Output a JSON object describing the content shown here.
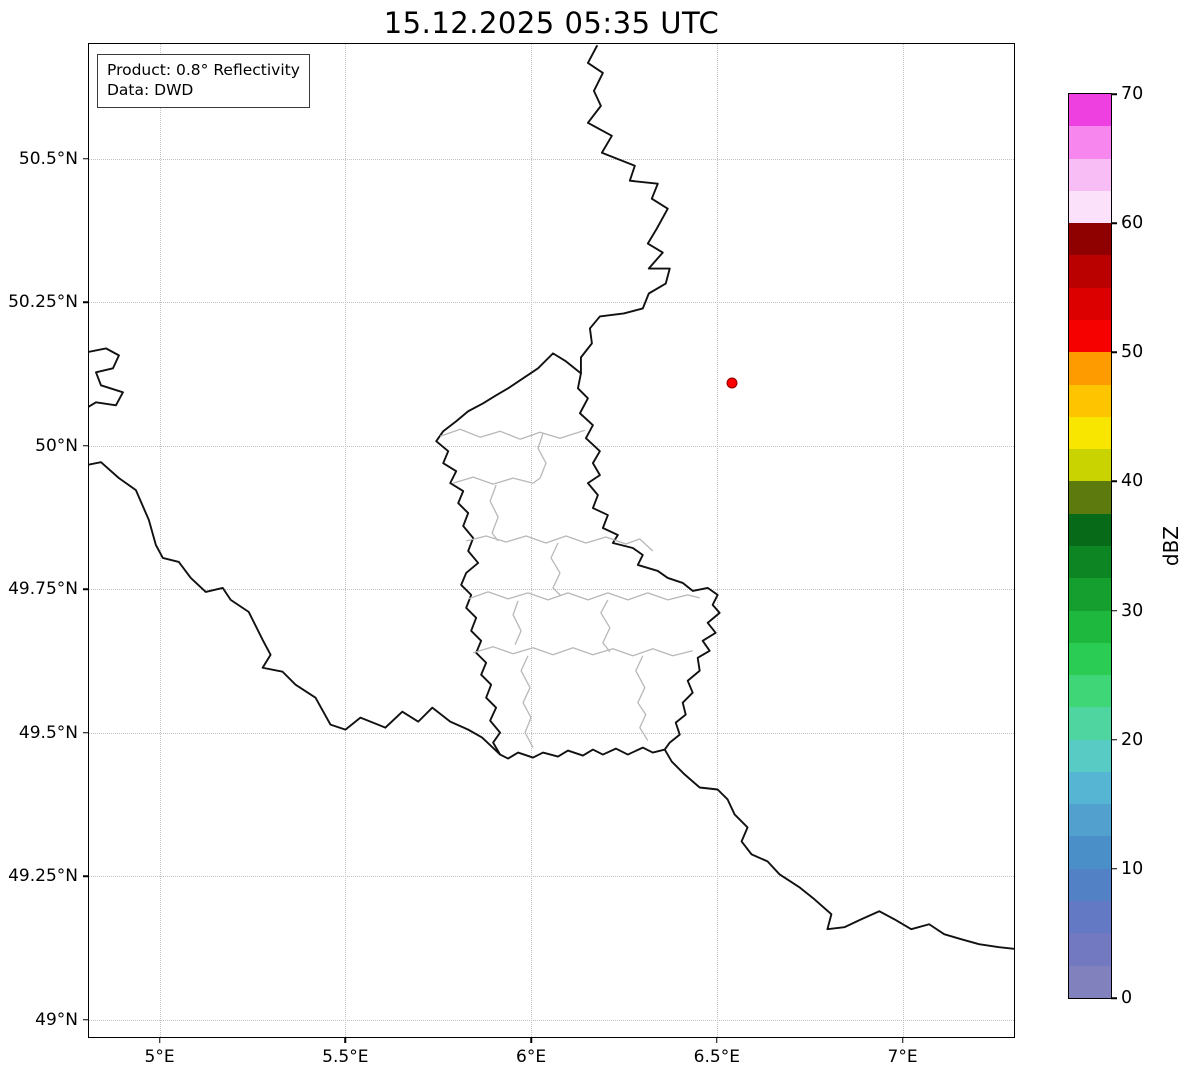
{
  "title": "15.12.2025 05:35 UTC",
  "info_box": {
    "product": "Product: 0.8° Reflectivity",
    "data_source": "Data: DWD"
  },
  "chart_data": {
    "type": "map",
    "subtype": "weather-radar-reflectivity",
    "title": "15.12.2025 05:35 UTC",
    "grid": true,
    "extent": {
      "lon_min": 4.81,
      "lon_max": 7.3,
      "lat_min": 48.97,
      "lat_max": 50.7
    },
    "x_axis": {
      "ticks": [
        {
          "value": 5.0,
          "label": "5°E"
        },
        {
          "value": 5.5,
          "label": "5.5°E"
        },
        {
          "value": 6.0,
          "label": "6°E"
        },
        {
          "value": 6.5,
          "label": "6.5°E"
        },
        {
          "value": 7.0,
          "label": "7°E"
        }
      ]
    },
    "y_axis": {
      "ticks": [
        {
          "value": 49.0,
          "label": "49°N"
        },
        {
          "value": 49.25,
          "label": "49.25°N"
        },
        {
          "value": 49.5,
          "label": "49.5°N"
        },
        {
          "value": 49.75,
          "label": "49.75°N"
        },
        {
          "value": 50.0,
          "label": "50°N"
        },
        {
          "value": 50.25,
          "label": "50.25°N"
        },
        {
          "value": 50.5,
          "label": "50.5°N"
        }
      ]
    },
    "marker": {
      "lon": 6.54,
      "lat": 50.11,
      "color": "#ff0000",
      "edge_color": "#8b0000"
    },
    "colorbar": {
      "label": "dBZ",
      "min": 0,
      "max": 70,
      "ticks": [
        0,
        10,
        20,
        30,
        40,
        50,
        60,
        70
      ],
      "segment_size": 2.5,
      "colors_bottom_to_top": [
        "#8181bd",
        "#7379c1",
        "#6379c4",
        "#5381c6",
        "#4b8fc9",
        "#51a0ce",
        "#55b5d2",
        "#57cbc4",
        "#4fd6a0",
        "#3ed677",
        "#2bcc54",
        "#1eb83e",
        "#149f2e",
        "#0c8522",
        "#076a18",
        "#5d7a0e",
        "#c9d302",
        "#f8e500",
        "#fec400",
        "#fd9b00",
        "#f60000",
        "#dc0000",
        "#bb0000",
        "#8f0000",
        "#fce1fb",
        "#f9bdf6",
        "#f787ee",
        "#ee3fe0"
      ]
    }
  }
}
